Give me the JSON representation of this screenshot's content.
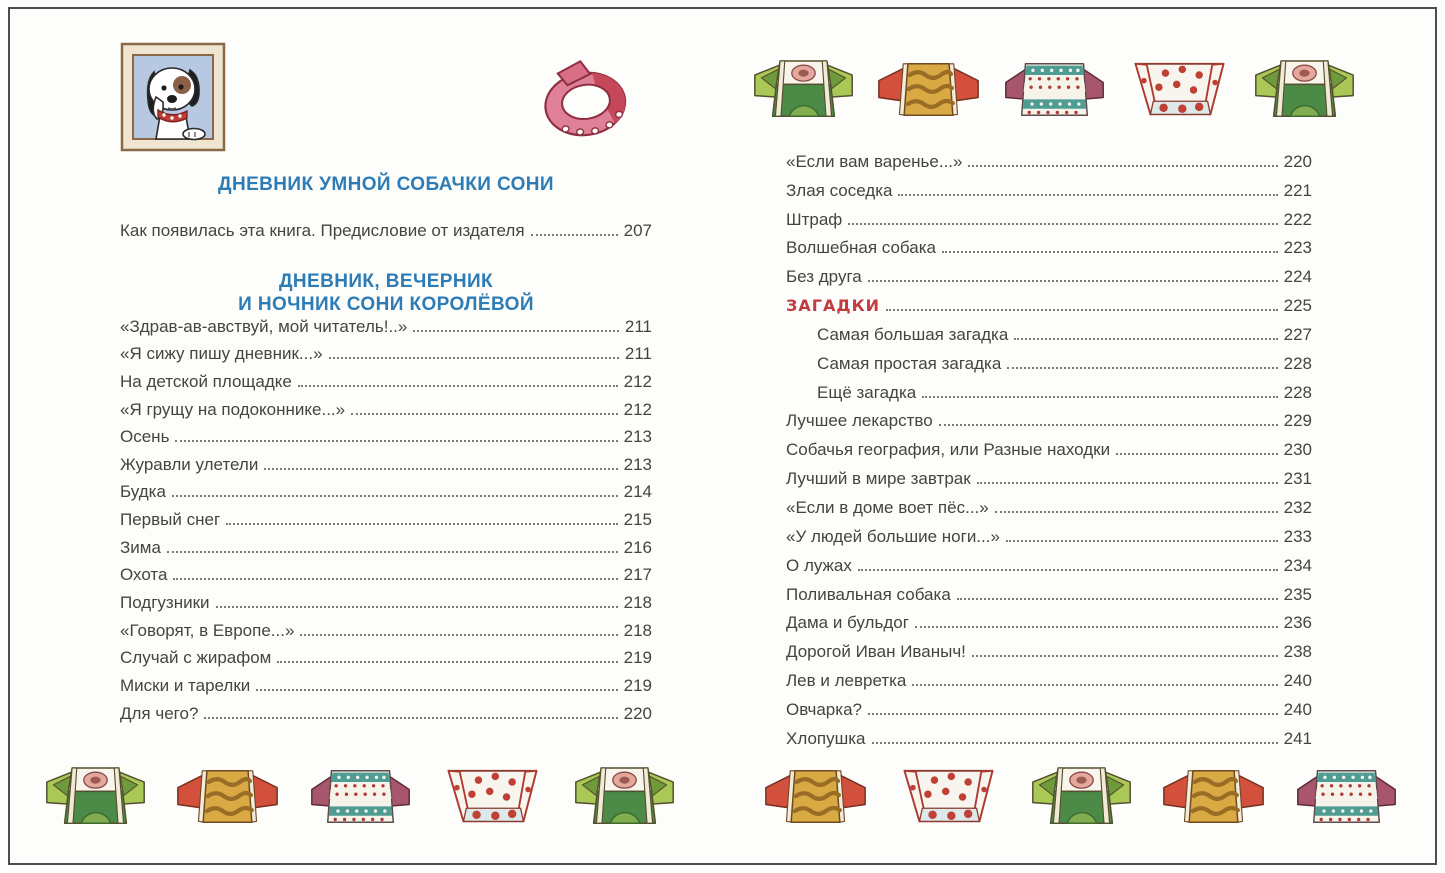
{
  "colors": {
    "header_blue": "#2e7cb5",
    "accent_red": "#c23b3e",
    "body_text": "#454440",
    "frame_border": "#4d4d4d"
  },
  "illustrations": {
    "top_left": "framed-puppy-portrait",
    "top_center": "pink-dog-collar",
    "candy_rows": "wrapped-candy-bowls"
  },
  "left_page": {
    "section1": {
      "title": "ДНЕВНИК УМНОЙ СОБАЧКИ СОНИ",
      "entries": [
        {
          "title": "Как появилась эта книга. Предисловие от издателя",
          "page": "207"
        }
      ]
    },
    "section2": {
      "title_line1": "ДНЕВНИК, ВЕЧЕРНИК",
      "title_line2": "И НОЧНИК СОНИ КОРОЛЁВОЙ",
      "entries": [
        {
          "title": "«Здрав-ав-авствуй, мой читатель!..»",
          "page": "211"
        },
        {
          "title": "«Я сижу пишу дневник...»",
          "page": "211"
        },
        {
          "title": "На детской площадке",
          "page": "212"
        },
        {
          "title": "«Я грущу на подоконнике...»",
          "page": "212"
        },
        {
          "title": "Осень",
          "page": "213"
        },
        {
          "title": "Журавли улетели",
          "page": "213"
        },
        {
          "title": "Будка",
          "page": "214"
        },
        {
          "title": "Первый снег",
          "page": "215"
        },
        {
          "title": "Зима",
          "page": "216"
        },
        {
          "title": "Охота",
          "page": "217"
        },
        {
          "title": "Подгузники",
          "page": "218"
        },
        {
          "title": "«Говорят, в Европе...»",
          "page": "218"
        },
        {
          "title": "Случай с жирафом",
          "page": "219"
        },
        {
          "title": "Миски и тарелки",
          "page": "219"
        },
        {
          "title": "Для чего?",
          "page": "220"
        }
      ]
    },
    "bottom_candies": [
      "green",
      "gold",
      "stripe",
      "dots",
      "green"
    ]
  },
  "right_page": {
    "top_candies": [
      "green",
      "gold",
      "stripe",
      "dots",
      "green"
    ],
    "entries": [
      {
        "title": "«Если вам варенье...»",
        "page": "220"
      },
      {
        "title": "Злая соседка",
        "page": "221"
      },
      {
        "title": "Штраф",
        "page": "222"
      },
      {
        "title": "Волшебная собака",
        "page": "223"
      },
      {
        "title": "Без друга",
        "page": "224"
      },
      {
        "title": "ЗАГАДКИ",
        "page": "225",
        "red": true
      },
      {
        "title": "Самая большая загадка",
        "page": "227",
        "indent": true
      },
      {
        "title": "Самая простая загадка",
        "page": "228",
        "indent": true
      },
      {
        "title": "Ещё загадка",
        "page": "228",
        "indent": true
      },
      {
        "title": "Лучшее лекарство",
        "page": "229"
      },
      {
        "title": "Собачья география, или Разные находки",
        "page": "230"
      },
      {
        "title": "Лучший в мире завтрак",
        "page": "231"
      },
      {
        "title": "«Если в доме воет пёс...»",
        "page": "232"
      },
      {
        "title": "«У людей большие ноги...»",
        "page": "233"
      },
      {
        "title": "О лужах",
        "page": "234"
      },
      {
        "title": "Поливальная собака",
        "page": "235"
      },
      {
        "title": "Дама и бульдог",
        "page": "236"
      },
      {
        "title": "Дорогой Иван Иваныч!",
        "page": "238"
      },
      {
        "title": "Лев и левретка",
        "page": "240"
      },
      {
        "title": "Овчарка?",
        "page": "240"
      },
      {
        "title": "Хлопушка",
        "page": "241"
      }
    ],
    "bottom_candies": [
      "gold",
      "dots",
      "green",
      "gold",
      "stripe"
    ]
  }
}
